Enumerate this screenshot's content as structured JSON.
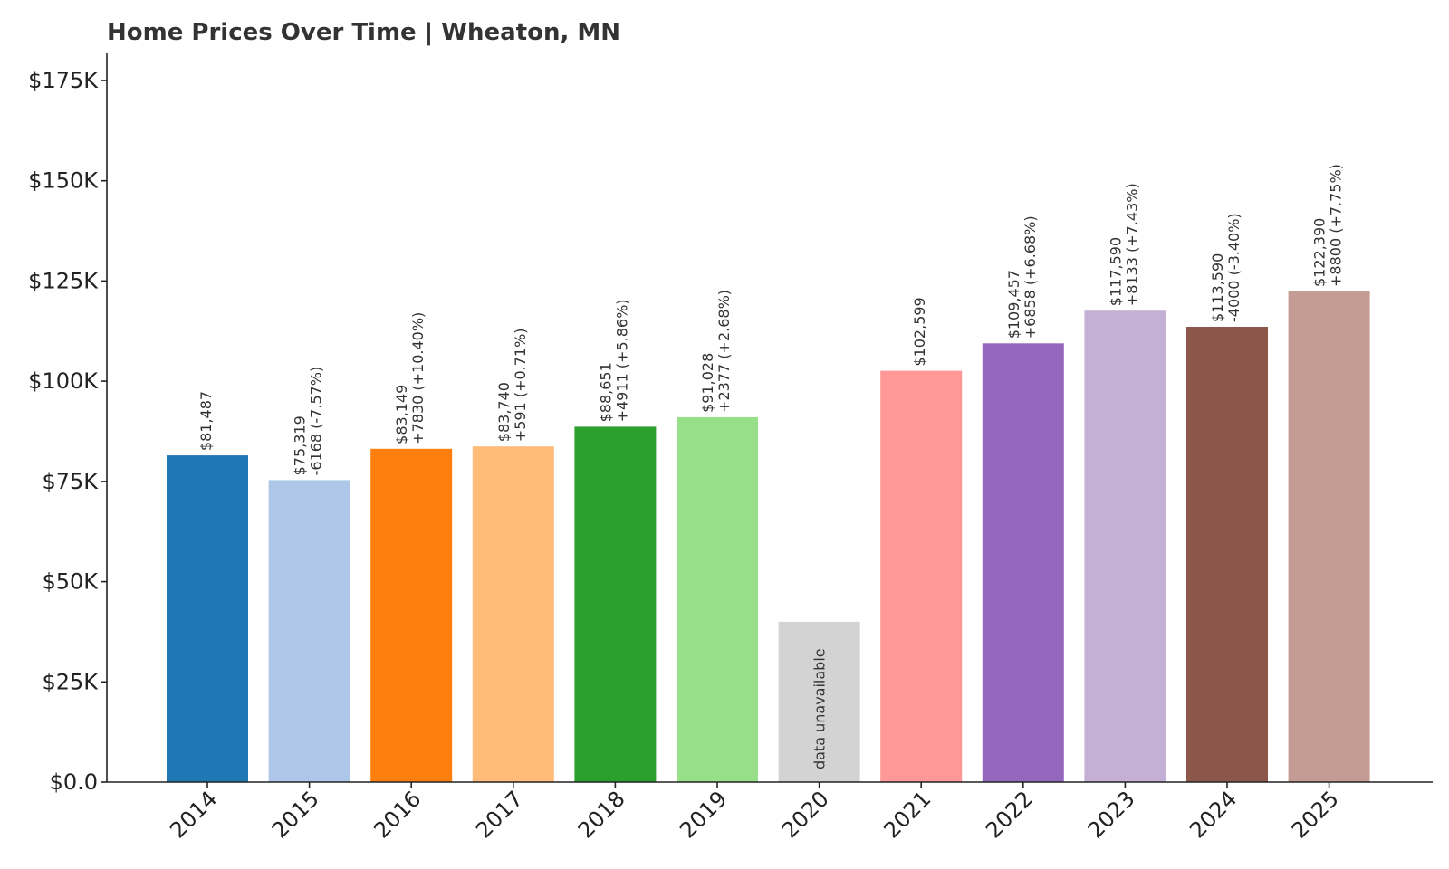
{
  "chart_data": {
    "type": "bar",
    "title": "Home Prices Over Time | Wheaton, MN",
    "xlabel": "",
    "ylabel": "",
    "ylim": [
      0,
      182000
    ],
    "yticks": [
      0,
      25000,
      50000,
      75000,
      100000,
      125000,
      150000,
      175000
    ],
    "ytick_labels": [
      "$0.0",
      "$25K",
      "$50K",
      "$75K",
      "$100K",
      "$125K",
      "$150K",
      "$175K"
    ],
    "grid": false,
    "categories": [
      "2014",
      "2015",
      "2016",
      "2017",
      "2018",
      "2019",
      "2020",
      "2021",
      "2022",
      "2023",
      "2024",
      "2025"
    ],
    "values": [
      81487,
      75319,
      83149,
      83740,
      88651,
      91028,
      40000,
      102599,
      109457,
      117590,
      113590,
      122390
    ],
    "colors": [
      "#1f77b4",
      "#aec7e8",
      "#ff7f0e",
      "#ffbb78",
      "#2ca02c",
      "#98df8a",
      "#d3d3d3",
      "#ff9896",
      "#9467bd",
      "#c5b0d5",
      "#8c564b",
      "#c49c94"
    ],
    "labels": [
      [
        "$81,487"
      ],
      [
        "$75,319",
        "-6168 (-7.57%)"
      ],
      [
        "$83,149",
        "+7830 (+10.40%)"
      ],
      [
        "$83,740",
        "+591 (+0.71%)"
      ],
      [
        "$88,651",
        "+4911 (+5.86%)"
      ],
      [
        "$91,028",
        "+2377 (+2.68%)"
      ],
      [],
      [
        "$102,599"
      ],
      [
        "$109,457",
        "+6858 (+6.68%)"
      ],
      [
        "$117,590",
        "+8133 (+7.43%)"
      ],
      [
        "$113,590",
        "-4000 (-3.40%)"
      ],
      [
        "$122,390",
        "+8800 (+7.75%)"
      ]
    ],
    "annotations": [
      {
        "category": "2020",
        "text": "data unavailable"
      }
    ]
  }
}
